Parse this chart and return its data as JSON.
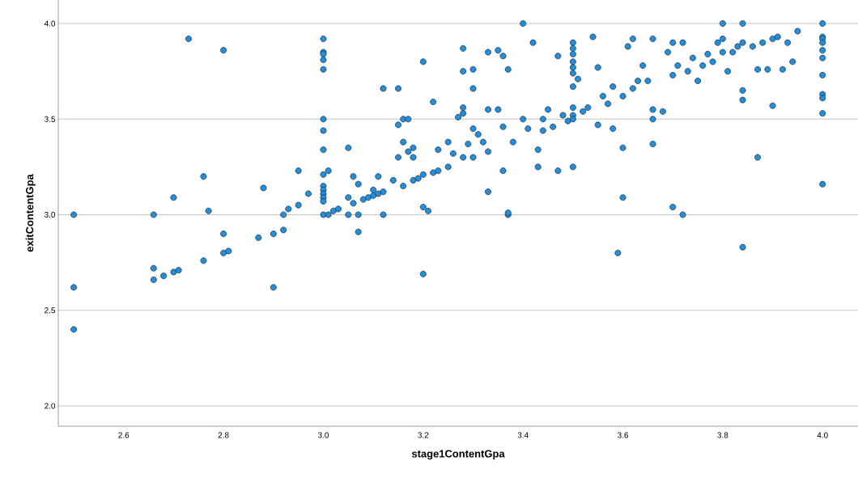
{
  "chart_data": {
    "type": "scatter",
    "xlabel": "stage1ContentGpa",
    "ylabel": "exitContentGpa",
    "x": [
      2.5,
      2.5,
      2.5,
      2.66,
      2.66,
      2.66,
      2.68,
      2.7,
      2.71,
      2.7,
      2.73,
      2.76,
      2.77,
      2.76,
      2.8,
      2.8,
      2.8,
      2.81,
      2.87,
      2.88,
      2.9,
      2.9,
      2.92,
      2.92,
      2.93,
      2.95,
      2.95,
      2.97,
      3.0,
      3.0,
      3.0,
      3.0,
      3.0,
      3.0,
      3.0,
      3.0,
      3.0,
      3.0,
      3.0,
      3.0,
      3.0,
      3.0,
      3.0,
      3.01,
      3.01,
      3.02,
      3.03,
      3.05,
      3.05,
      3.05,
      3.06,
      3.06,
      3.07,
      3.07,
      3.07,
      3.08,
      3.09,
      3.1,
      3.1,
      3.11,
      3.11,
      3.12,
      3.12,
      3.12,
      3.15,
      3.14,
      3.15,
      3.15,
      3.16,
      3.17,
      3.16,
      3.16,
      3.17,
      3.18,
      3.18,
      3.18,
      3.19,
      3.2,
      3.2,
      3.2,
      3.21,
      3.2,
      3.22,
      3.22,
      3.23,
      3.23,
      3.25,
      3.25,
      3.26,
      3.27,
      3.28,
      3.28,
      3.28,
      3.28,
      3.28,
      3.29,
      3.3,
      3.3,
      3.3,
      3.31,
      3.3,
      3.32,
      3.33,
      3.33,
      3.33,
      3.33,
      3.35,
      3.36,
      3.35,
      3.37,
      3.36,
      3.36,
      3.37,
      3.37,
      3.38,
      3.4,
      3.4,
      3.41,
      3.42,
      3.43,
      3.43,
      3.44,
      3.44,
      3.45,
      3.46,
      3.47,
      3.47,
      3.48,
      3.49,
      3.5,
      3.5,
      3.5,
      3.5,
      3.5,
      3.5,
      3.5,
      3.5,
      3.5,
      3.5,
      3.5,
      3.51,
      3.52,
      3.53,
      3.54,
      3.55,
      3.55,
      3.56,
      3.57,
      3.58,
      3.58,
      3.59,
      3.6,
      3.6,
      3.6,
      3.61,
      3.62,
      3.62,
      3.63,
      3.64,
      3.65,
      3.66,
      3.66,
      3.66,
      3.66,
      3.68,
      3.69,
      3.7,
      3.7,
      3.7,
      3.71,
      3.72,
      3.72,
      3.73,
      3.74,
      3.75,
      3.76,
      3.77,
      3.78,
      3.79,
      3.8,
      3.8,
      3.8,
      3.81,
      3.82,
      3.83,
      3.84,
      3.84,
      3.84,
      3.84,
      3.84,
      3.86,
      3.87,
      3.87,
      3.88,
      3.89,
      3.9,
      3.9,
      3.91,
      3.92,
      3.93,
      3.94,
      3.95,
      4.0,
      4.0,
      4.0,
      4.0,
      4.0,
      4.0,
      4.0,
      4.0,
      4.0,
      4.0,
      4.0
    ],
    "values": [
      3.0,
      2.62,
      2.4,
      3.0,
      2.72,
      2.66,
      2.68,
      2.7,
      2.71,
      3.09,
      3.92,
      3.2,
      3.02,
      2.76,
      3.86,
      2.9,
      2.8,
      2.81,
      2.88,
      3.14,
      2.9,
      2.62,
      2.92,
      3.0,
      3.03,
      3.05,
      3.23,
      3.11,
      3.92,
      3.85,
      3.84,
      3.81,
      3.76,
      3.5,
      3.44,
      3.34,
      3.21,
      3.15,
      3.13,
      3.11,
      3.09,
      3.07,
      3.0,
      3.23,
      3.0,
      3.02,
      3.03,
      3.35,
      3.09,
      3.0,
      3.2,
      3.06,
      3.16,
      2.91,
      3.0,
      3.08,
      3.09,
      3.1,
      3.13,
      3.11,
      3.2,
      3.12,
      3.0,
      3.66,
      3.66,
      3.18,
      3.3,
      3.47,
      3.5,
      3.5,
      3.15,
      3.38,
      3.33,
      3.35,
      3.3,
      3.18,
      3.19,
      3.21,
      3.8,
      3.04,
      3.02,
      2.69,
      3.59,
      3.22,
      3.34,
      3.23,
      3.25,
      3.38,
      3.32,
      3.51,
      3.87,
      3.75,
      3.56,
      3.53,
      3.3,
      3.37,
      3.76,
      3.66,
      3.45,
      3.42,
      3.3,
      3.38,
      3.85,
      3.55,
      3.33,
      3.12,
      3.86,
      3.83,
      3.55,
      3.76,
      3.46,
      3.23,
      3.0,
      3.01,
      3.38,
      4.0,
      3.5,
      3.45,
      3.9,
      3.34,
      3.25,
      3.5,
      3.44,
      3.55,
      3.46,
      3.83,
      3.23,
      3.52,
      3.49,
      3.9,
      3.87,
      3.84,
      3.8,
      3.77,
      3.74,
      3.67,
      3.56,
      3.52,
      3.5,
      3.25,
      3.71,
      3.54,
      3.56,
      3.93,
      3.77,
      3.47,
      3.62,
      3.58,
      3.67,
      3.45,
      2.8,
      3.62,
      3.35,
      3.09,
      3.88,
      3.66,
      3.92,
      3.7,
      3.78,
      3.7,
      3.92,
      3.55,
      3.5,
      3.37,
      3.54,
      3.85,
      3.9,
      3.73,
      3.04,
      3.78,
      3.9,
      3.0,
      3.75,
      3.82,
      3.7,
      3.78,
      3.84,
      3.8,
      3.9,
      4.0,
      3.92,
      3.85,
      3.75,
      3.85,
      3.88,
      4.0,
      3.9,
      3.65,
      3.6,
      2.83,
      3.88,
      3.76,
      3.3,
      3.9,
      3.76,
      3.92,
      3.57,
      3.93,
      3.76,
      3.9,
      3.8,
      3.96,
      4.0,
      3.93,
      3.92,
      3.9,
      3.86,
      3.82,
      3.73,
      3.63,
      3.61,
      3.53,
      3.16
    ],
    "color": "#1f8fe0",
    "grid": "y",
    "xlim": [
      2.469,
      4.071
    ],
    "ylim": [
      1.894,
      4.123
    ],
    "xticks": [
      {
        "value": 2.6,
        "label": "2.6"
      },
      {
        "value": 2.8,
        "label": "2.8"
      },
      {
        "value": 3.0,
        "label": "3.0"
      },
      {
        "value": 3.2,
        "label": "3.2"
      },
      {
        "value": 3.4,
        "label": "3.4"
      },
      {
        "value": 3.6,
        "label": "3.6"
      },
      {
        "value": 3.8,
        "label": "3.8"
      },
      {
        "value": 4.0,
        "label": "4.0"
      }
    ],
    "yticks": [
      {
        "value": 2.0,
        "label": "2.0"
      },
      {
        "value": 2.5,
        "label": "2.5"
      },
      {
        "value": 3.0,
        "label": "3.0"
      },
      {
        "value": 3.5,
        "label": "3.5"
      },
      {
        "value": 4.0,
        "label": "4.0"
      }
    ]
  }
}
